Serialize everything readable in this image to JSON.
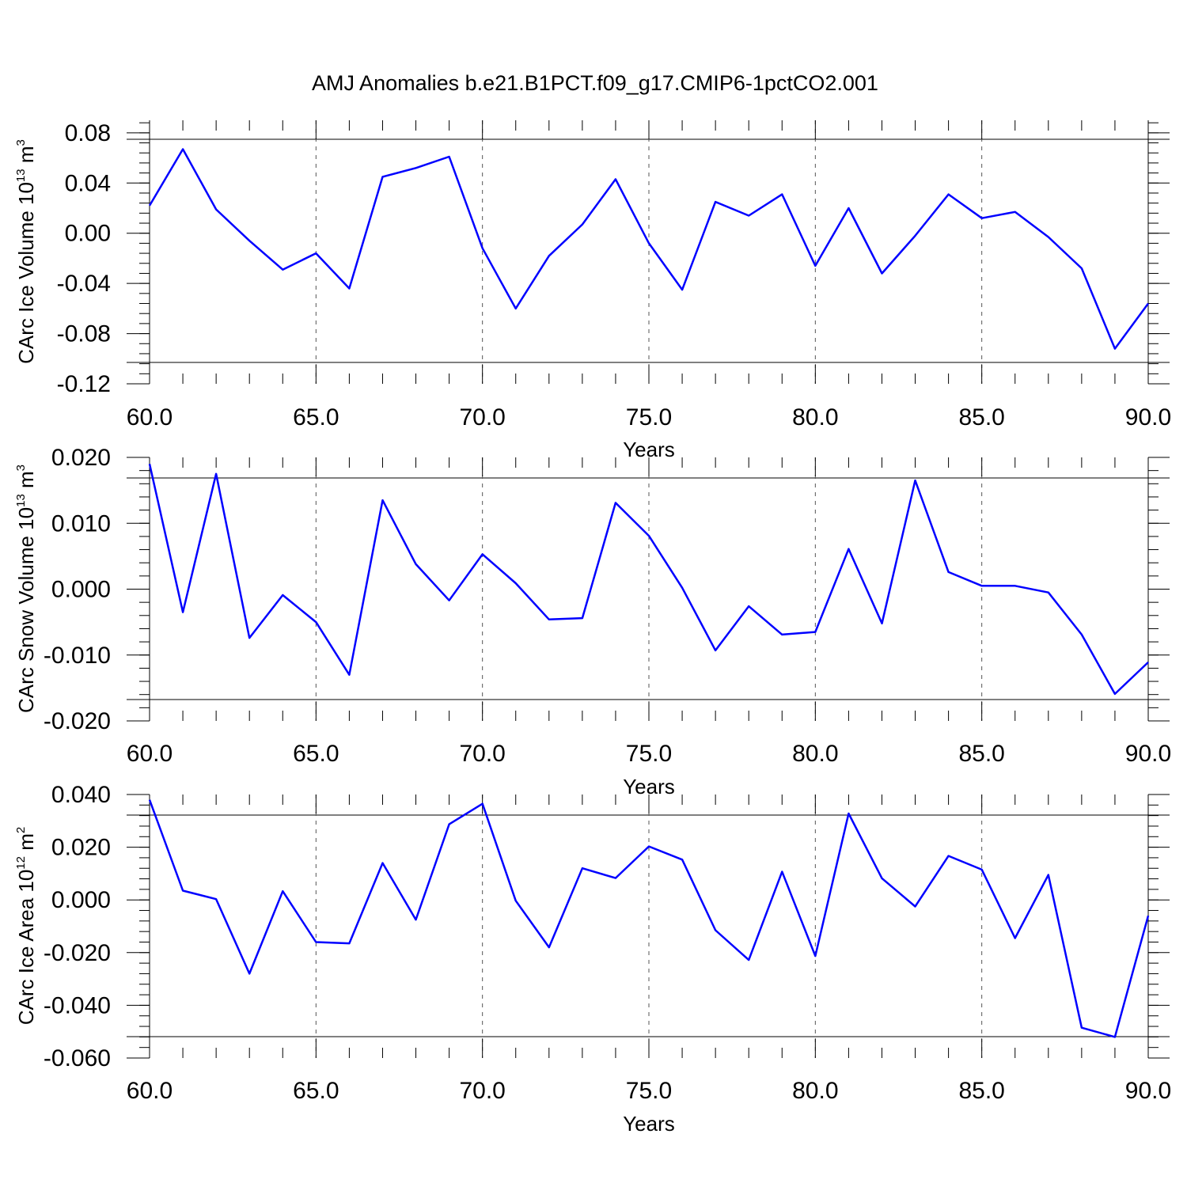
{
  "title": "AMJ Anomalies b.e21.B1PCT.f09_g17.CMIP6-1pctCO2.001",
  "colors": {
    "line": "#0000ff",
    "axis": "#000000",
    "grid": "#555555",
    "background": "#ffffff"
  },
  "chart_data": [
    {
      "type": "line",
      "xlabel": "Years",
      "ylabel": {
        "text": "CArc Ice Volume 10",
        "power": "13",
        "unit": " m",
        "unit_power": "3"
      },
      "xlim": [
        60,
        90
      ],
      "ylim": [
        -0.12,
        0.09
      ],
      "xticks": [
        "60.0",
        "65.0",
        "70.0",
        "75.0",
        "80.0",
        "85.0",
        "90.0"
      ],
      "yticks": [
        {
          "value": 0.08,
          "label": "0.08"
        },
        {
          "value": 0.04,
          "label": "0.04"
        },
        {
          "value": 0.0,
          "label": "0.00"
        },
        {
          "value": -0.04,
          "label": "-0.04"
        },
        {
          "value": -0.08,
          "label": "-0.08"
        },
        {
          "value": -0.12,
          "label": "-0.12"
        }
      ],
      "grid": "vertical dashed at major x ticks",
      "series": [
        {
          "x": [
            60,
            61,
            62,
            63,
            64,
            65,
            66,
            67,
            68,
            69,
            70,
            71,
            72,
            73,
            74,
            75,
            76,
            77,
            78,
            79,
            80,
            81,
            82,
            83,
            84,
            85,
            86,
            87,
            88,
            89,
            90
          ],
          "y": [
            0.022,
            0.067,
            0.019,
            -0.006,
            -0.029,
            -0.016,
            -0.044,
            0.045,
            0.052,
            0.061,
            -0.012,
            -0.06,
            -0.018,
            0.007,
            0.043,
            -0.008,
            -0.045,
            0.025,
            0.014,
            0.031,
            -0.026,
            0.02,
            -0.032,
            -0.002,
            0.031,
            0.012,
            0.017,
            -0.003,
            -0.028,
            -0.092,
            -0.056
          ]
        }
      ]
    },
    {
      "type": "line",
      "xlabel": "Years",
      "ylabel": {
        "text": "CArc Snow Volume 10",
        "power": "13",
        "unit": " m",
        "unit_power": "3"
      },
      "xlim": [
        60,
        90
      ],
      "ylim": [
        -0.02,
        0.02
      ],
      "xticks": [
        "60.0",
        "65.0",
        "70.0",
        "75.0",
        "80.0",
        "85.0",
        "90.0"
      ],
      "yticks": [
        {
          "value": 0.02,
          "label": "0.020"
        },
        {
          "value": 0.01,
          "label": "0.010"
        },
        {
          "value": 0.0,
          "label": "0.000"
        },
        {
          "value": -0.01,
          "label": "-0.010"
        },
        {
          "value": -0.02,
          "label": "-0.020"
        }
      ],
      "grid": "vertical dashed at major x ticks",
      "series": [
        {
          "x": [
            60,
            61,
            62,
            63,
            64,
            65,
            66,
            67,
            68,
            69,
            70,
            71,
            72,
            73,
            74,
            75,
            76,
            77,
            78,
            79,
            80,
            81,
            82,
            83,
            84,
            85,
            86,
            87,
            88,
            89,
            90
          ],
          "y": [
            0.019,
            -0.0035,
            0.0175,
            -0.0074,
            -0.0009,
            -0.005,
            -0.013,
            0.0135,
            0.0038,
            -0.0017,
            0.0053,
            0.0009,
            -0.0046,
            -0.0044,
            0.0131,
            0.0081,
            0.0002,
            -0.0093,
            -0.0026,
            -0.0069,
            -0.0065,
            0.0061,
            -0.0052,
            0.0165,
            0.0026,
            0.0005,
            0.0005,
            -0.0005,
            -0.0069,
            -0.0159,
            -0.0111
          ]
        }
      ]
    },
    {
      "type": "line",
      "xlabel": "Years",
      "ylabel": {
        "text": "CArc Ice Area 10",
        "power": "12",
        "unit": " m",
        "unit_power": "2"
      },
      "xlim": [
        60,
        90
      ],
      "ylim": [
        -0.06,
        0.04
      ],
      "xticks": [
        "60.0",
        "65.0",
        "70.0",
        "75.0",
        "80.0",
        "85.0",
        "90.0"
      ],
      "yticks": [
        {
          "value": 0.04,
          "label": "0.040"
        },
        {
          "value": 0.02,
          "label": "0.020"
        },
        {
          "value": 0.0,
          "label": "0.000"
        },
        {
          "value": -0.02,
          "label": "-0.020"
        },
        {
          "value": -0.04,
          "label": "-0.040"
        },
        {
          "value": -0.06,
          "label": "-0.060"
        }
      ],
      "grid": "vertical dashed at major x ticks",
      "series": [
        {
          "x": [
            60,
            61,
            62,
            63,
            64,
            65,
            66,
            67,
            68,
            69,
            70,
            71,
            72,
            73,
            74,
            75,
            76,
            77,
            78,
            79,
            80,
            81,
            82,
            83,
            84,
            85,
            86,
            87,
            88,
            89,
            90
          ],
          "y": [
            0.038,
            0.0035,
            0.0003,
            -0.028,
            0.0033,
            -0.016,
            -0.0165,
            0.014,
            -0.0075,
            0.0287,
            0.0365,
            -0.0003,
            -0.018,
            0.012,
            0.0083,
            0.0203,
            0.0153,
            -0.0115,
            -0.0228,
            0.0107,
            -0.0213,
            0.0328,
            0.0082,
            -0.0025,
            0.0167,
            0.0115,
            -0.0145,
            0.0095,
            -0.0485,
            -0.052,
            -0.006
          ]
        }
      ]
    }
  ]
}
